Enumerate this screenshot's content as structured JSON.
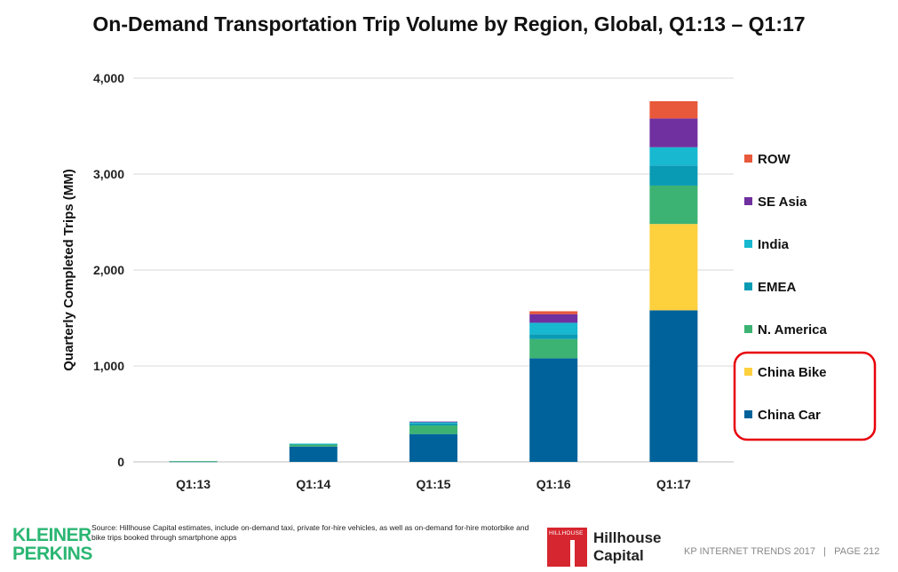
{
  "chart_data": {
    "type": "bar",
    "stacked": true,
    "title": "On-Demand Transportation Trip Volume by Region, Global, Q1:13 – Q1:17",
    "ylabel": "Quarterly Completed Trips (MM)",
    "xlabel": "",
    "ylim": [
      0,
      4000
    ],
    "yticks": [
      0,
      1000,
      2000,
      3000,
      4000
    ],
    "ytick_labels": [
      "0",
      "1,000",
      "2,000",
      "3,000",
      "4,000"
    ],
    "grid": true,
    "legend_position": "right",
    "categories": [
      "Q1:13",
      "Q1:14",
      "Q1:15",
      "Q1:16",
      "Q1:17"
    ],
    "series": [
      {
        "name": "China Car",
        "color": "#00629b",
        "values": [
          5,
          160,
          290,
          1080,
          1580
        ]
      },
      {
        "name": "China Bike",
        "color": "#fdd03e",
        "values": [
          0,
          0,
          0,
          0,
          900
        ]
      },
      {
        "name": "N. America",
        "color": "#3cb373",
        "values": [
          3,
          25,
          90,
          200,
          400
        ]
      },
      {
        "name": "EMEA",
        "color": "#0a9bb4",
        "values": [
          0,
          3,
          20,
          50,
          210
        ]
      },
      {
        "name": "India",
        "color": "#17b8d0",
        "values": [
          0,
          2,
          15,
          120,
          190
        ]
      },
      {
        "name": "SE Asia",
        "color": "#7030a0",
        "values": [
          0,
          0,
          5,
          90,
          300
        ]
      },
      {
        "name": "ROW",
        "color": "#e8583a",
        "values": [
          0,
          0,
          0,
          30,
          180
        ]
      }
    ],
    "legend_highlight": [
      "China Bike",
      "China Car"
    ],
    "highlight_color": "#e8000b"
  },
  "footer": {
    "source": "Source: Hillhouse Capital estimates, include on-demand taxi, private for-hire vehicles, as well as on-demand for-hire motorbike and bike trips booked through smartphone apps",
    "kp_logo_line1": "KLEINER",
    "kp_logo_line2": "PERKINS",
    "hh_box_text": "HILLHOUSE",
    "hh_name_line1": "Hillhouse",
    "hh_name_line2": "Capital",
    "page_info": "KP INTERNET TRENDS 2017   |   PAGE 212"
  },
  "colors": {
    "kp_green": "#2bb673",
    "hillhouse_red": "#d6262f"
  }
}
